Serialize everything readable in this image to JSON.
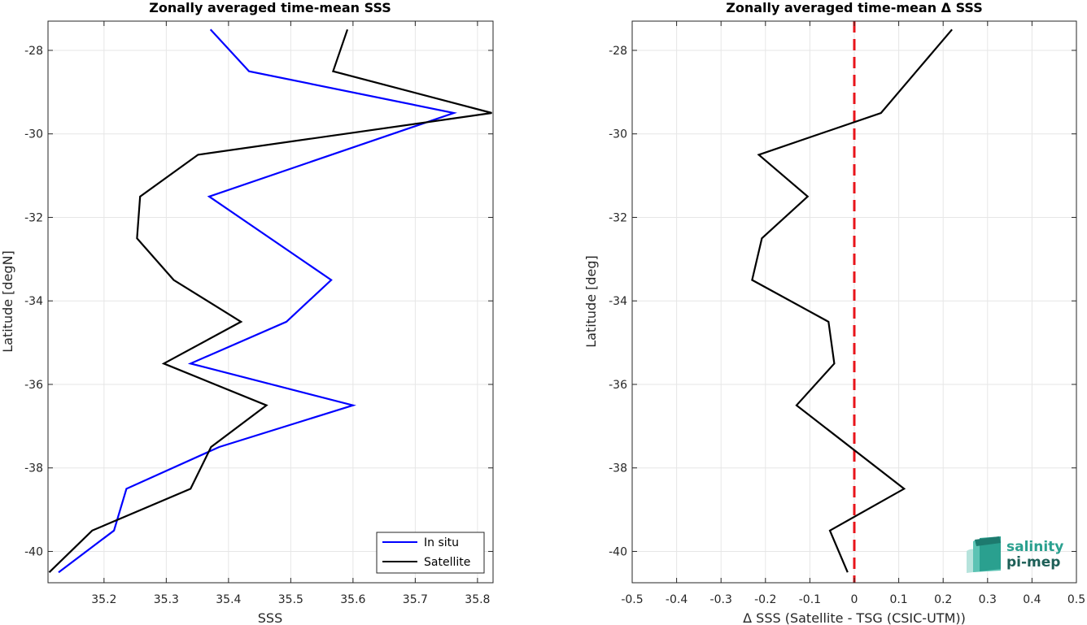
{
  "chart_data": [
    {
      "type": "line",
      "title": "Zonally averaged time-mean SSS",
      "xlabel": "SSS",
      "ylabel": "Latitude [degN]",
      "xlim": [
        35.11,
        35.825
      ],
      "ylim": [
        -40.75,
        -27.3
      ],
      "xticks": [
        35.2,
        35.3,
        35.4,
        35.5,
        35.6,
        35.7,
        35.8
      ],
      "xtick_labels": [
        "35.2",
        "35.3",
        "35.4",
        "35.5",
        "35.6",
        "35.7",
        "35.8"
      ],
      "yticks": [
        -40,
        -38,
        -36,
        -34,
        -32,
        -30,
        -28
      ],
      "ytick_labels": [
        "-40",
        "-38",
        "-36",
        "-34",
        "-32",
        "-30",
        "-28"
      ],
      "grid": true,
      "legend_position": "bottom-right",
      "series": [
        {
          "name": "In situ",
          "color": "#0000ff",
          "x": [
            35.371,
            35.433,
            35.762,
            35.369,
            35.565,
            35.493,
            35.339,
            35.6,
            35.385,
            35.236,
            35.216,
            35.127
          ],
          "y": [
            -27.5,
            -28.5,
            -29.5,
            -31.5,
            -33.5,
            -34.5,
            -35.5,
            -36.5,
            -37.5,
            -38.5,
            -39.5,
            -40.5
          ]
        },
        {
          "name": "Satellite",
          "color": "#000000",
          "x": [
            35.591,
            35.568,
            35.823,
            35.351,
            35.258,
            35.253,
            35.312,
            35.42,
            35.296,
            35.461,
            35.372,
            35.339,
            35.181,
            35.112
          ],
          "y": [
            -27.5,
            -28.5,
            -29.5,
            -30.5,
            -31.5,
            -32.5,
            -33.5,
            -34.5,
            -35.5,
            -36.5,
            -37.5,
            -38.5,
            -39.5,
            -40.5
          ]
        }
      ]
    },
    {
      "type": "line",
      "title": "Zonally averaged time-mean Δ SSS",
      "xlabel": "Δ SSS (Satellite - TSG (CSIC-UTM))",
      "ylabel": "Latitude [deg]",
      "xlim": [
        -0.5,
        0.5
      ],
      "ylim": [
        -40.75,
        -27.3
      ],
      "xticks": [
        -0.5,
        -0.4,
        -0.3,
        -0.2,
        -0.1,
        0,
        0.1,
        0.2,
        0.3,
        0.4,
        0.5
      ],
      "xtick_labels": [
        "-0.5",
        "-0.4",
        "-0.3",
        "-0.2",
        "-0.1",
        "0",
        "0.1",
        "0.2",
        "0.3",
        "0.4",
        "0.5"
      ],
      "yticks": [
        -40,
        -38,
        -36,
        -34,
        -32,
        -30,
        -28
      ],
      "ytick_labels": [
        "-40",
        "-38",
        "-36",
        "-34",
        "-32",
        "-30",
        "-28"
      ],
      "grid": true,
      "series": [
        {
          "color": "#000000",
          "x": [
            0.22,
            0.14,
            0.06,
            -0.215,
            -0.105,
            -0.208,
            -0.23,
            -0.058,
            -0.045,
            -0.13,
            0.112,
            -0.055,
            -0.015
          ],
          "y": [
            -27.5,
            -28.5,
            -29.5,
            -30.5,
            -31.5,
            -32.5,
            -33.5,
            -34.5,
            -35.5,
            -36.5,
            -38.5,
            -39.5,
            -40.5
          ]
        }
      ],
      "reference_line": {
        "x": 0,
        "color": "#e8141b",
        "style": "dashed"
      }
    }
  ],
  "logo": {
    "line1": "salinity",
    "line2": "pi-mep",
    "color_light": "#2aa08f",
    "color_dark": "#1d5f57"
  }
}
